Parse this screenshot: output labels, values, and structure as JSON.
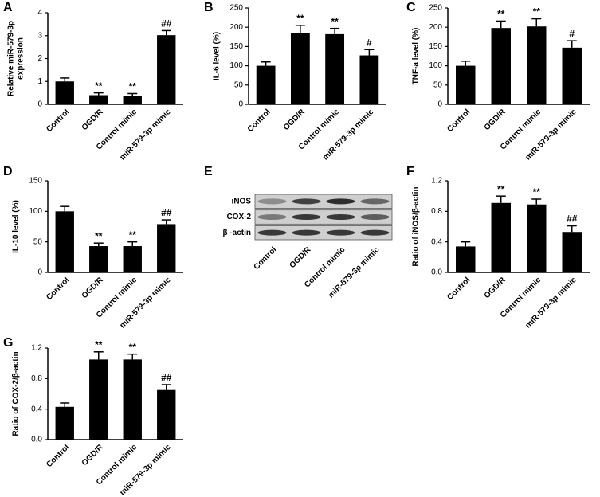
{
  "chart_data": [
    {
      "type": "bar",
      "panel": "A",
      "ylabel": [
        "Relative miR-579-3p",
        "expression"
      ],
      "categories": [
        "Control",
        "OGD/R",
        "Control mimic",
        "miR-579-3p mimic"
      ],
      "values": [
        1.0,
        0.4,
        0.37,
        3.02
      ],
      "errors": [
        0.15,
        0.1,
        0.1,
        0.2
      ],
      "annotations": [
        null,
        "**",
        "**",
        "##"
      ],
      "color": "#000000",
      "ylim": [
        0,
        4
      ],
      "yticks": [
        0,
        1,
        2,
        3,
        4
      ]
    },
    {
      "type": "bar",
      "panel": "B",
      "ylabel": [
        "IL-6 level (%)"
      ],
      "categories": [
        "Control",
        "OGD/R",
        "Control mimic",
        "miR-579-3p mimic"
      ],
      "values": [
        100,
        185,
        182,
        127
      ],
      "errors": [
        10,
        20,
        15,
        15
      ],
      "annotations": [
        null,
        "**",
        "**",
        "#"
      ],
      "color": "#000000",
      "ylim": [
        0,
        250
      ],
      "yticks": [
        0,
        50,
        100,
        150,
        200,
        250
      ]
    },
    {
      "type": "bar",
      "panel": "C",
      "ylabel": [
        "TNF-a level (%)"
      ],
      "categories": [
        "Control",
        "OGD/R",
        "Control mimic",
        "miR-579-3p mimic"
      ],
      "values": [
        100,
        198,
        202,
        147
      ],
      "errors": [
        12,
        18,
        20,
        18
      ],
      "annotations": [
        null,
        "**",
        "**",
        "#"
      ],
      "color": "#000000",
      "ylim": [
        0,
        250
      ],
      "yticks": [
        0,
        50,
        100,
        150,
        200,
        250
      ]
    },
    {
      "type": "bar",
      "panel": "D",
      "ylabel": [
        "IL-10 level (%)"
      ],
      "categories": [
        "Control",
        "OGD/R",
        "Control mimic",
        "miR-579-3p mimic"
      ],
      "values": [
        100,
        43,
        43,
        79
      ],
      "errors": [
        8,
        5,
        7,
        7
      ],
      "annotations": [
        null,
        "**",
        "**",
        "##"
      ],
      "color": "#000000",
      "ylim": [
        0,
        150
      ],
      "yticks": [
        0,
        50,
        100,
        150
      ]
    },
    {
      "type": "blot",
      "panel": "E",
      "rows": [
        "iNOS",
        "COX-2",
        "β -actin"
      ],
      "categories": [
        "Control",
        "OGD/R",
        "Control mimic",
        "miR-579-3p mimic"
      ]
    },
    {
      "type": "bar",
      "panel": "F",
      "ylabel": [
        "Ratio of iNOS/β-actin"
      ],
      "categories": [
        "Control",
        "OGD/R",
        "Control mimic",
        "miR-579-3p mimic"
      ],
      "values": [
        0.34,
        0.91,
        0.89,
        0.53
      ],
      "errors": [
        0.06,
        0.09,
        0.07,
        0.08
      ],
      "annotations": [
        null,
        "**",
        "**",
        "##"
      ],
      "color": "#000000",
      "ylim": [
        0,
        1.2
      ],
      "yticks": [
        {
          "value": 0,
          "label": "0.0"
        },
        0.4,
        0.8,
        1.2
      ]
    },
    {
      "type": "bar",
      "panel": "G",
      "ylabel": [
        "Ratio of COX-2/β-actin"
      ],
      "categories": [
        "Control",
        "OGD/R",
        "Control mimic",
        "miR-579-3p mimic"
      ],
      "values": [
        0.43,
        1.05,
        1.05,
        0.65
      ],
      "errors": [
        0.05,
        0.1,
        0.07,
        0.07
      ],
      "annotations": [
        null,
        "**",
        "**",
        "##"
      ],
      "color": "#000000",
      "ylim": [
        0,
        1.2
      ],
      "yticks": [
        {
          "value": 0,
          "label": "0.0"
        },
        0.4,
        0.8,
        1.2
      ]
    }
  ]
}
